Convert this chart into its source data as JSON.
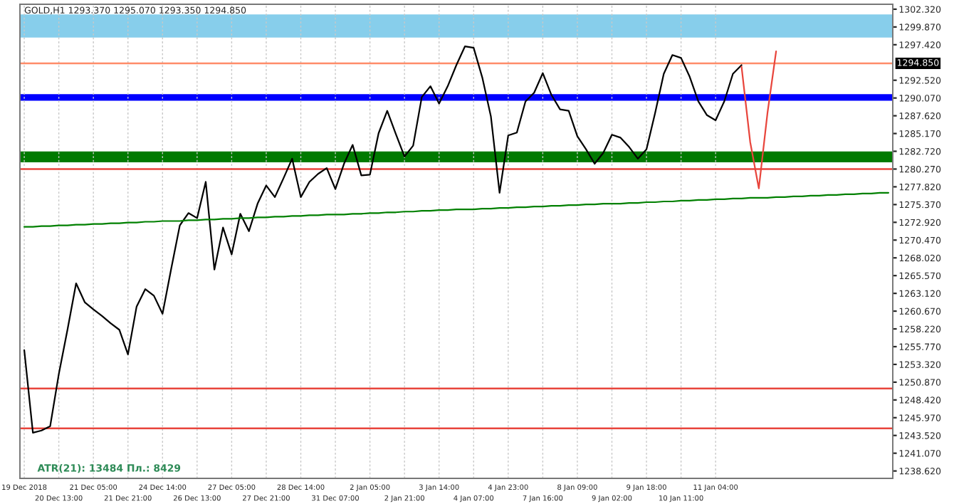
{
  "chart_data": {
    "type": "line",
    "title": "GOLD,H1 1293.370 1295.070 1293.350 1294.850",
    "annotations": [
      "ATR(21): 13484 Пл.: 8429"
    ],
    "categories": [
      "19 Dec 2018",
      null,
      null,
      null,
      "20 Dec 13:00",
      null,
      null,
      null,
      "21 Dec 05:00",
      null,
      null,
      null,
      "21 Dec 21:00",
      null,
      null,
      null,
      "24 Dec 14:00",
      null,
      null,
      null,
      "26 Dec 13:00",
      null,
      null,
      null,
      "27 Dec 05:00",
      null,
      null,
      null,
      "27 Dec 21:00",
      null,
      null,
      null,
      "28 Dec 14:00",
      null,
      null,
      null,
      "31 Dec 07:00",
      null,
      null,
      null,
      "2 Jan 05:00",
      null,
      null,
      null,
      "2 Jan 21:00",
      null,
      null,
      null,
      "3 Jan 14:00",
      null,
      null,
      null,
      "4 Jan 07:00",
      null,
      null,
      null,
      "4 Jan 23:00",
      null,
      null,
      null,
      "7 Jan 16:00",
      null,
      null,
      null,
      "8 Jan 09:00",
      null,
      null,
      null,
      "9 Jan 02:00",
      null,
      null,
      null,
      "9 Jan 18:00",
      null,
      null,
      null,
      "10 Jan 11:00",
      null,
      null,
      null,
      "11 Jan 04:00",
      null,
      null,
      null,
      null,
      null,
      null,
      null,
      null,
      null,
      null,
      null,
      null,
      null,
      null,
      null,
      null,
      null,
      null,
      null,
      null
    ],
    "series": [
      {
        "color": "#000000",
        "values": [
          1255.3,
          1243.9,
          1244.2,
          1244.8,
          1252.0,
          1258.1,
          1264.5,
          1261.9,
          1260.9,
          1260.0,
          1259.0,
          1258.1,
          1254.7,
          1261.3,
          1263.7,
          1262.8,
          1260.3,
          1266.5,
          1272.5,
          1274.2,
          1273.5,
          1278.5,
          1266.4,
          1272.2,
          1268.5,
          1274.1,
          1271.7,
          1275.5,
          1278.0,
          1276.4,
          1279.0,
          1281.7,
          1276.4,
          1278.5,
          1279.6,
          1280.4,
          1277.5,
          1281.0,
          1283.6,
          1279.4,
          1279.5,
          1285.2,
          1288.3,
          1285.1,
          1282.0,
          1283.5,
          1290.2,
          1291.7,
          1289.3,
          1291.7,
          1294.6,
          1297.2,
          1297.0,
          1292.9,
          1287.5,
          1277.0,
          1284.9,
          1285.3,
          1289.6,
          1290.8,
          1293.5,
          1290.5,
          1288.5,
          1288.3,
          1284.8,
          1283.0,
          1281.0,
          1282.5,
          1285.0,
          1284.6,
          1283.3,
          1281.7,
          1283.0,
          1288.0,
          1293.4,
          1296.0,
          1295.6,
          1293.0,
          1289.6,
          1287.7,
          1287.0,
          1289.6,
          1293.4,
          1294.6,
          null,
          null,
          null,
          null,
          null,
          null,
          null,
          null,
          null,
          null,
          null,
          null,
          null,
          null,
          null,
          null,
          null
        ]
      },
      {
        "color": "#008000",
        "values": [
          1272.3,
          1272.3,
          1272.4,
          1272.4,
          1272.5,
          1272.5,
          1272.6,
          1272.6,
          1272.7,
          1272.7,
          1272.8,
          1272.8,
          1272.9,
          1272.9,
          1273.0,
          1273.0,
          1273.1,
          1273.1,
          1273.1,
          1273.2,
          1273.2,
          1273.3,
          1273.3,
          1273.4,
          1273.4,
          1273.5,
          1273.5,
          1273.6,
          1273.6,
          1273.7,
          1273.7,
          1273.8,
          1273.8,
          1273.9,
          1273.9,
          1274.0,
          1274.0,
          1274.0,
          1274.1,
          1274.1,
          1274.2,
          1274.2,
          1274.3,
          1274.3,
          1274.4,
          1274.4,
          1274.5,
          1274.5,
          1274.6,
          1274.6,
          1274.7,
          1274.7,
          1274.7,
          1274.8,
          1274.8,
          1274.9,
          1274.9,
          1275.0,
          1275.0,
          1275.1,
          1275.1,
          1275.2,
          1275.2,
          1275.3,
          1275.3,
          1275.4,
          1275.4,
          1275.5,
          1275.5,
          1275.5,
          1275.6,
          1275.6,
          1275.7,
          1275.7,
          1275.8,
          1275.8,
          1275.9,
          1275.9,
          1276.0,
          1276.0,
          1276.1,
          1276.1,
          1276.2,
          1276.2,
          1276.3,
          1276.3,
          1276.3,
          1276.4,
          1276.4,
          1276.5,
          1276.5,
          1276.6,
          1276.6,
          1276.7,
          1276.7,
          1276.8,
          1276.8,
          1276.9,
          1276.9,
          1277.0,
          1277.0
        ]
      },
      {
        "color": "#e8453c",
        "values": [
          null,
          null,
          null,
          null,
          null,
          null,
          null,
          null,
          null,
          null,
          null,
          null,
          null,
          null,
          null,
          null,
          null,
          null,
          null,
          null,
          null,
          null,
          null,
          null,
          null,
          null,
          null,
          null,
          null,
          null,
          null,
          null,
          null,
          null,
          null,
          null,
          null,
          null,
          null,
          null,
          null,
          null,
          null,
          null,
          null,
          null,
          null,
          null,
          null,
          null,
          null,
          null,
          null,
          null,
          null,
          null,
          null,
          null,
          null,
          null,
          null,
          null,
          null,
          null,
          null,
          null,
          null,
          null,
          null,
          null,
          null,
          null,
          null,
          null,
          null,
          null,
          null,
          null,
          null,
          null,
          null,
          null,
          null,
          1294.4,
          1284.0,
          1277.6,
          1288.0,
          1296.5,
          null,
          null,
          null,
          null,
          null,
          null,
          null,
          null,
          null,
          null,
          null,
          null,
          null
        ]
      }
    ],
    "ylim": [
      1237.6,
      1303.0
    ],
    "yticks": [
      {
        "value": 1238.62,
        "label": "1238.620"
      },
      {
        "value": 1241.07,
        "label": "1241.070"
      },
      {
        "value": 1243.52,
        "label": "1243.520"
      },
      {
        "value": 1245.97,
        "label": "1245.970"
      },
      {
        "value": 1248.42,
        "label": "1248.420"
      },
      {
        "value": 1250.87,
        "label": "1250.870"
      },
      {
        "value": 1253.32,
        "label": "1253.320"
      },
      {
        "value": 1255.77,
        "label": "1255.770"
      },
      {
        "value": 1258.22,
        "label": "1258.220"
      },
      {
        "value": 1260.67,
        "label": "1260.670"
      },
      {
        "value": 1263.12,
        "label": "1263.120"
      },
      {
        "value": 1265.57,
        "label": "1265.570"
      },
      {
        "value": 1268.02,
        "label": "1268.020"
      },
      {
        "value": 1270.47,
        "label": "1270.470"
      },
      {
        "value": 1272.92,
        "label": "1272.920"
      },
      {
        "value": 1275.37,
        "label": "1275.370"
      },
      {
        "value": 1277.82,
        "label": "1277.820"
      },
      {
        "value": 1280.27,
        "label": "1280.270"
      },
      {
        "value": 1282.72,
        "label": "1282.720"
      },
      {
        "value": 1285.17,
        "label": "1285.170"
      },
      {
        "value": 1287.62,
        "label": "1287.620"
      },
      {
        "value": 1290.07,
        "label": "1290.070"
      },
      {
        "value": 1292.52,
        "label": "1292.520"
      },
      {
        "value": 1297.42,
        "label": "1297.420"
      },
      {
        "value": 1299.87,
        "label": "1299.870"
      },
      {
        "value": 1302.32,
        "label": "1302.320"
      }
    ],
    "ref_lines": [
      {
        "axis": "y",
        "value": 1294.85,
        "label": "1294.850",
        "color": "#ff8c69"
      },
      {
        "axis": "y",
        "value": 1280.27,
        "color": "#e8453c"
      },
      {
        "axis": "y",
        "value": 1250.0,
        "color": "#e8453c"
      },
      {
        "axis": "y",
        "value": 1244.5,
        "color": "#e8453c"
      }
    ],
    "bands": [
      {
        "axis": "y",
        "from": 1298.4,
        "to": 1301.6,
        "color": "#87ceeb"
      },
      {
        "axis": "y",
        "from": 1289.7,
        "to": 1290.6,
        "color": "#0000ff"
      },
      {
        "axis": "y",
        "from": 1281.2,
        "to": 1282.7,
        "color": "#007a00"
      }
    ],
    "grid": "x"
  }
}
